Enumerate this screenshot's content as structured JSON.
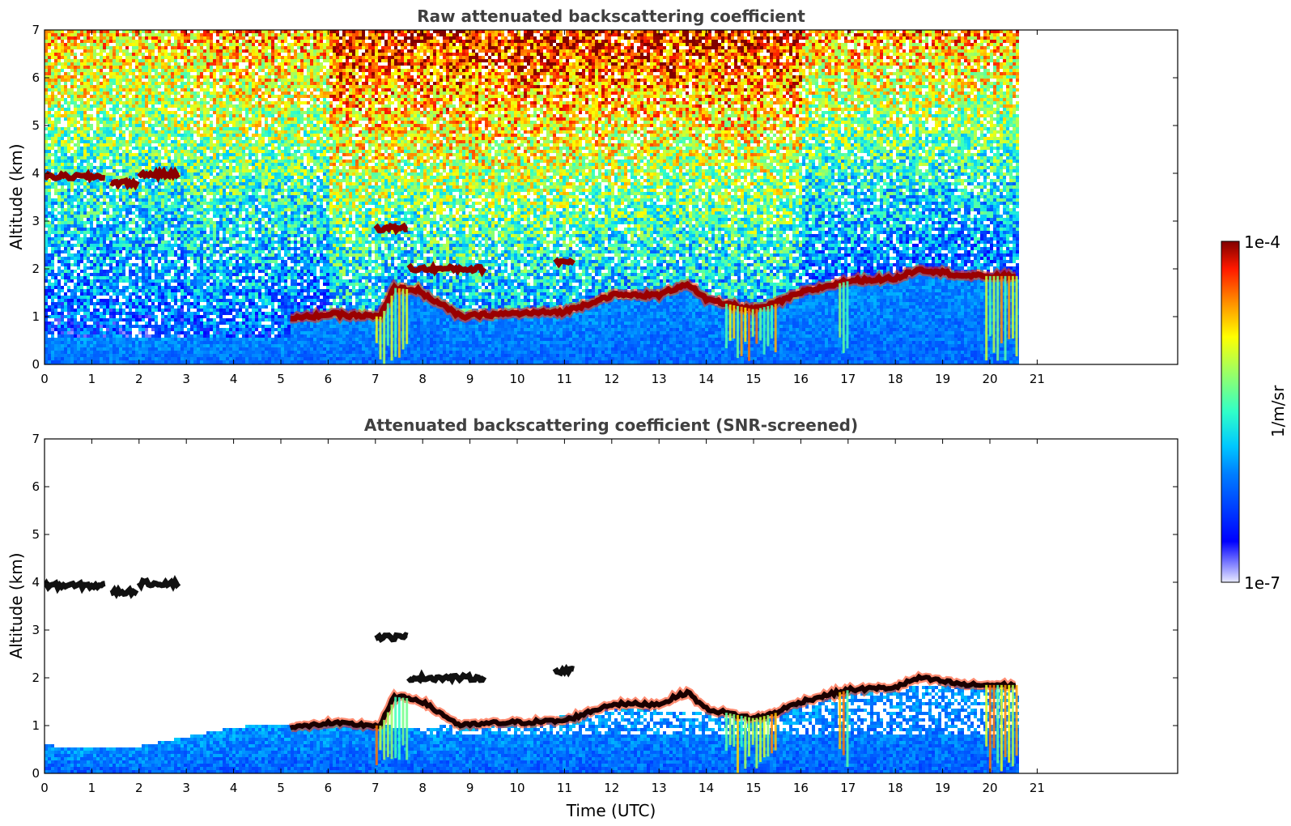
{
  "chart_data": [
    {
      "type": "heatmap",
      "title": "Raw attenuated backscattering coefficient",
      "xlabel": "",
      "ylabel": "Altitude (km)",
      "xlim": [
        0,
        24
      ],
      "ylim": [
        0,
        7
      ],
      "xticks": [
        "0",
        "1",
        "2",
        "3",
        "4",
        "5",
        "6",
        "7",
        "8",
        "9",
        "10",
        "11",
        "12",
        "13",
        "14",
        "15",
        "16",
        "17",
        "18",
        "19",
        "20",
        "21"
      ],
      "yticks": [
        "0",
        "1",
        "2",
        "3",
        "4",
        "5",
        "6",
        "7"
      ],
      "data_end_time": 20.6,
      "features": {
        "layer_base_track": [
          [
            5.2,
            0.95
          ],
          [
            6.0,
            1.05
          ],
          [
            7.1,
            1.0
          ],
          [
            7.4,
            1.6
          ],
          [
            7.9,
            1.55
          ],
          [
            8.8,
            1.0
          ],
          [
            9.5,
            1.05
          ],
          [
            11.0,
            1.1
          ],
          [
            12.0,
            1.45
          ],
          [
            13.0,
            1.45
          ],
          [
            13.6,
            1.7
          ],
          [
            14.0,
            1.35
          ],
          [
            15.0,
            1.15
          ],
          [
            15.4,
            1.25
          ],
          [
            16.0,
            1.5
          ],
          [
            17.0,
            1.75
          ],
          [
            18.0,
            1.8
          ],
          [
            18.5,
            2.0
          ],
          [
            19.5,
            1.85
          ],
          [
            20.6,
            1.85
          ]
        ],
        "elevated_layers": [
          {
            "t0": 0.0,
            "t1": 1.3,
            "alt": 3.93
          },
          {
            "t0": 1.4,
            "t1": 2.0,
            "alt": 3.8
          },
          {
            "t0": 2.0,
            "t1": 2.85,
            "alt": 3.98
          },
          {
            "t0": 7.0,
            "t1": 7.7,
            "alt": 2.85
          },
          {
            "t0": 7.7,
            "t1": 9.3,
            "alt": 2.0
          },
          {
            "t0": 10.8,
            "t1": 11.2,
            "alt": 2.15
          }
        ],
        "precip_streaks": [
          [
            7.0,
            7.7
          ],
          [
            14.4,
            15.5
          ],
          [
            16.8,
            17.0
          ],
          [
            19.9,
            20.6
          ]
        ]
      }
    },
    {
      "type": "heatmap",
      "title": "Attenuated backscattering coefficient (SNR-screened)",
      "xlabel": "Time (UTC)",
      "ylabel": "Altitude (km)",
      "xlim": [
        0,
        24
      ],
      "ylim": [
        0,
        7
      ],
      "xticks": [
        "0",
        "1",
        "2",
        "3",
        "4",
        "5",
        "6",
        "7",
        "8",
        "9",
        "10",
        "11",
        "12",
        "13",
        "14",
        "15",
        "16",
        "17",
        "18",
        "19",
        "20",
        "21"
      ],
      "yticks": [
        "0",
        "1",
        "2",
        "3",
        "4",
        "5",
        "6",
        "7"
      ],
      "data_end_time": 20.6,
      "features": {
        "boundary_layer_top": [
          [
            0,
            0.62
          ],
          [
            1.0,
            0.55
          ],
          [
            2.0,
            0.6
          ],
          [
            3.0,
            0.8
          ],
          [
            4.0,
            1.0
          ],
          [
            5.0,
            1.08
          ],
          [
            6.0,
            1.05
          ],
          [
            8.0,
            1.0
          ],
          [
            10.0,
            1.1
          ],
          [
            12.0,
            1.4
          ],
          [
            14.0,
            1.3
          ],
          [
            15.0,
            1.15
          ],
          [
            16.0,
            1.5
          ],
          [
            17.0,
            1.75
          ],
          [
            18.0,
            1.8
          ],
          [
            19.0,
            1.95
          ],
          [
            20.6,
            1.85
          ]
        ]
      }
    }
  ],
  "colorbar": {
    "max_label": "1e-4",
    "min_label": "1e-7",
    "unit_label": "1/m/sr",
    "colormap": "jet"
  }
}
